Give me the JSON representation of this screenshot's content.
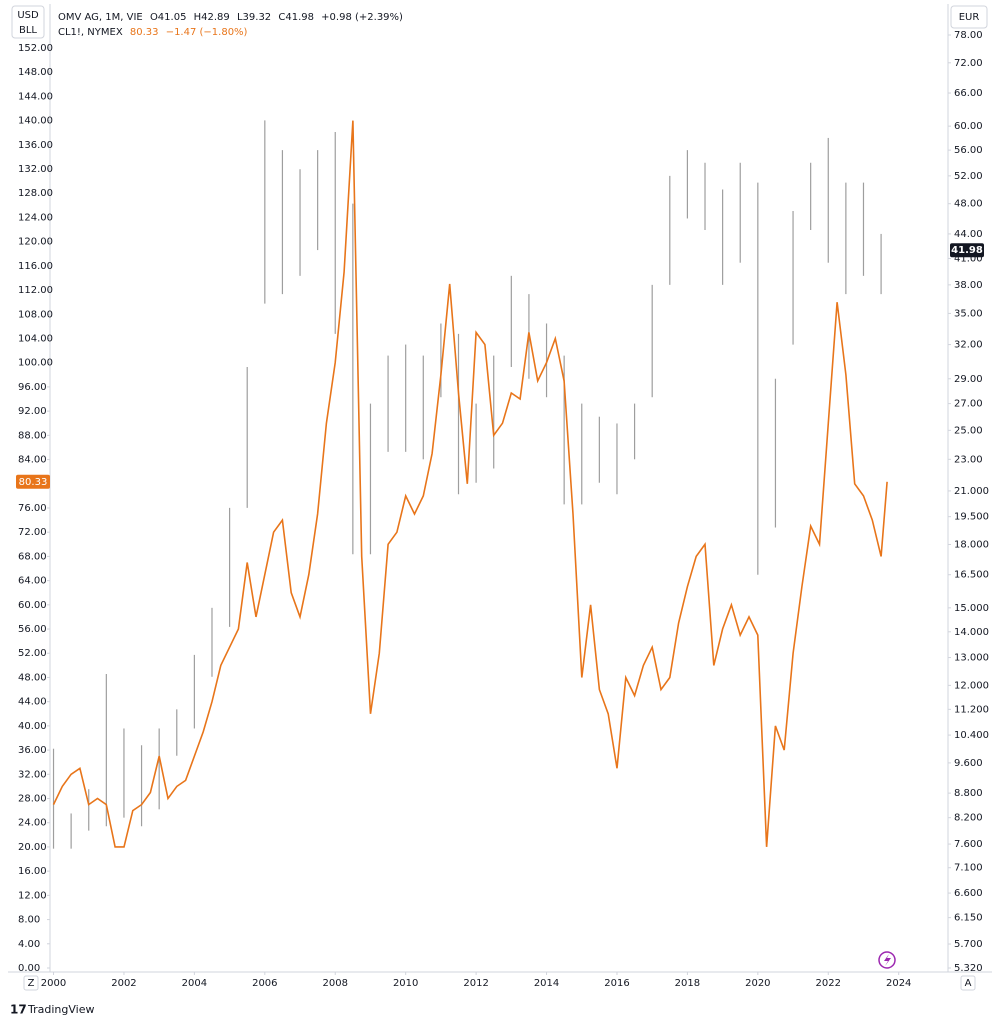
{
  "header": {
    "left_unit_top": "USD",
    "left_unit_bottom": "BLL",
    "right_unit": "EUR",
    "open": "O41.05",
    "high": "H42.89",
    "low": "L39.32",
    "close": "C41.98",
    "change": "+0.98 (+2.39%)",
    "oil_price": "80.33",
    "oil_change": "−1.47 (−1.80%)",
    "scale_left": "Z",
    "scale_right": "A",
    "brand": "TradingView"
  },
  "chart_data": {
    "type": "combo",
    "xlim": [
      1999.9,
      2025.4
    ],
    "xticks": [
      2000,
      2002,
      2004,
      2006,
      2008,
      2010,
      2012,
      2014,
      2016,
      2018,
      2020,
      2022,
      2024
    ],
    "ylim": [
      0,
      158.6
    ],
    "yticks": [
      {
        "value": 0,
        "label": "0.00"
      },
      {
        "value": 4,
        "label": "4.00"
      },
      {
        "value": 8,
        "label": "8.00"
      },
      {
        "value": 12,
        "label": "12.00"
      },
      {
        "value": 16,
        "label": "16.00"
      },
      {
        "value": 20,
        "label": "20.00"
      },
      {
        "value": 24,
        "label": "24.00"
      },
      {
        "value": 28,
        "label": "28.00"
      },
      {
        "value": 32,
        "label": "32.00"
      },
      {
        "value": 36,
        "label": "36.00"
      },
      {
        "value": 40,
        "label": "40.00"
      },
      {
        "value": 44,
        "label": "44.00"
      },
      {
        "value": 48,
        "label": "48.00"
      },
      {
        "value": 52,
        "label": "52.00"
      },
      {
        "value": 56,
        "label": "56.00"
      },
      {
        "value": 60,
        "label": "60.00"
      },
      {
        "value": 64,
        "label": "64.00"
      },
      {
        "value": 68,
        "label": "68.00"
      },
      {
        "value": 72,
        "label": "72.00"
      },
      {
        "value": 76,
        "label": "76.00"
      },
      {
        "value": 80,
        "label": "80.00"
      },
      {
        "value": 84,
        "label": "84.00"
      },
      {
        "value": 88,
        "label": "88.00"
      },
      {
        "value": 92,
        "label": "92.00"
      },
      {
        "value": 96,
        "label": "96.00"
      },
      {
        "value": 100,
        "label": "100.00"
      },
      {
        "value": 104,
        "label": "104.00"
      },
      {
        "value": 108,
        "label": "108.00"
      },
      {
        "value": 112,
        "label": "112.00"
      },
      {
        "value": 116,
        "label": "116.00"
      },
      {
        "value": 120,
        "label": "120.00"
      },
      {
        "value": 124,
        "label": "124.00"
      },
      {
        "value": 128,
        "label": "128.00"
      },
      {
        "value": 132,
        "label": "132.00"
      },
      {
        "value": 136,
        "label": "136.00"
      },
      {
        "value": 140,
        "label": "140.00"
      },
      {
        "value": 144,
        "label": "144.00"
      },
      {
        "value": 148,
        "label": "148.00"
      },
      {
        "value": 152,
        "label": "152.00"
      }
    ],
    "y2lim": [
      5.32,
      84.3
    ],
    "y2_log": true,
    "y2ticks": [
      {
        "value": 5.32,
        "label": "5.320"
      },
      {
        "value": 5.7,
        "label": "5.700"
      },
      {
        "value": 6.15,
        "label": "6.150"
      },
      {
        "value": 6.6,
        "label": "6.600"
      },
      {
        "value": 7.1,
        "label": "7.100"
      },
      {
        "value": 7.6,
        "label": "7.600"
      },
      {
        "value": 8.2,
        "label": "8.200"
      },
      {
        "value": 8.8,
        "label": "8.800"
      },
      {
        "value": 9.6,
        "label": "9.600"
      },
      {
        "value": 10.4,
        "label": "10.400"
      },
      {
        "value": 11.2,
        "label": "11.200"
      },
      {
        "value": 12,
        "label": "12.000"
      },
      {
        "value": 13,
        "label": "13.000"
      },
      {
        "value": 14,
        "label": "14.000"
      },
      {
        "value": 15,
        "label": "15.000"
      },
      {
        "value": 16.5,
        "label": "16.500"
      },
      {
        "value": 18,
        "label": "18.000"
      },
      {
        "value": 19.5,
        "label": "19.500"
      },
      {
        "value": 21,
        "label": "21.000"
      },
      {
        "value": 23,
        "label": "23.00"
      },
      {
        "value": 25,
        "label": "25.00"
      },
      {
        "value": 27,
        "label": "27.00"
      },
      {
        "value": 29,
        "label": "29.00"
      },
      {
        "value": 32,
        "label": "32.00"
      },
      {
        "value": 35,
        "label": "35.00"
      },
      {
        "value": 38,
        "label": "38.00"
      },
      {
        "value": 41,
        "label": "41.00"
      },
      {
        "value": 44,
        "label": "44.00"
      },
      {
        "value": 48,
        "label": "48.00"
      },
      {
        "value": 52,
        "label": "52.00"
      },
      {
        "value": 56,
        "label": "56.00"
      },
      {
        "value": 60,
        "label": "60.00"
      },
      {
        "value": 66,
        "label": "66.00"
      },
      {
        "value": 72,
        "label": "72.00"
      },
      {
        "value": 78,
        "label": "78.00"
      }
    ],
    "series": [
      {
        "name": "OMV AG, 1M, VIE",
        "type": "range-bar",
        "axis": "y2",
        "color": "#9e9e9e",
        "last_value": 41.98,
        "last_label": "41.98",
        "x": [
          2000,
          2000.5,
          2001,
          2001.5,
          2002,
          2002.5,
          2003,
          2003.5,
          2004,
          2004.5,
          2005,
          2005.5,
          2006,
          2006.5,
          2007,
          2007.5,
          2008,
          2008.5,
          2009,
          2009.5,
          2010,
          2010.5,
          2011,
          2011.5,
          2012,
          2012.5,
          2013,
          2013.5,
          2014,
          2014.5,
          2015,
          2015.5,
          2016,
          2016.5,
          2017,
          2017.5,
          2018,
          2018.5,
          2019,
          2019.5,
          2020,
          2020.5,
          2021,
          2021.5,
          2022,
          2022.5,
          2023,
          2023.5
        ],
        "high": [
          10,
          8.3,
          8.9,
          12.4,
          10.6,
          10.1,
          10.6,
          11.2,
          13.1,
          15,
          20,
          30,
          61,
          56,
          53,
          56,
          59,
          48,
          27,
          31,
          32,
          31,
          34,
          33,
          27,
          31,
          39,
          37,
          34,
          31,
          27,
          26,
          25.5,
          27,
          38,
          52,
          56,
          54,
          50,
          54,
          51,
          29,
          47,
          54,
          58,
          51,
          51,
          44
        ],
        "low": [
          7.5,
          7.5,
          7.9,
          8,
          8.2,
          8,
          8.4,
          9.8,
          10.6,
          12.3,
          14.2,
          20,
          36,
          37,
          39,
          42,
          33,
          17.5,
          17.5,
          23.5,
          23.5,
          23,
          27.5,
          20.8,
          21.5,
          22.4,
          30,
          29,
          27.5,
          20.2,
          20.2,
          21.5,
          20.8,
          23,
          27.5,
          38,
          46,
          44.5,
          38,
          40.5,
          16.5,
          18.9,
          32,
          44.5,
          40.5,
          37,
          39,
          37
        ]
      },
      {
        "name": "CL1!, NYMEX",
        "type": "line",
        "axis": "y",
        "color": "#e8751a",
        "last_value": 80.33,
        "last_label": "80.33",
        "x": [
          2000,
          2000.25,
          2000.5,
          2000.75,
          2001,
          2001.25,
          2001.5,
          2001.75,
          2002,
          2002.25,
          2002.5,
          2002.75,
          2003,
          2003.25,
          2003.5,
          2003.75,
          2004,
          2004.25,
          2004.5,
          2004.75,
          2005,
          2005.25,
          2005.5,
          2005.75,
          2006,
          2006.25,
          2006.5,
          2006.75,
          2007,
          2007.25,
          2007.5,
          2007.75,
          2008,
          2008.25,
          2008.5,
          2008.75,
          2009,
          2009.25,
          2009.5,
          2009.75,
          2010,
          2010.25,
          2010.5,
          2010.75,
          2011,
          2011.25,
          2011.5,
          2011.75,
          2012,
          2012.25,
          2012.5,
          2012.75,
          2013,
          2013.25,
          2013.5,
          2013.75,
          2014,
          2014.25,
          2014.5,
          2014.75,
          2015,
          2015.25,
          2015.5,
          2015.75,
          2016,
          2016.25,
          2016.5,
          2016.75,
          2017,
          2017.25,
          2017.5,
          2017.75,
          2018,
          2018.25,
          2018.5,
          2018.75,
          2019,
          2019.25,
          2019.5,
          2019.75,
          2020,
          2020.25,
          2020.5,
          2020.75,
          2021,
          2021.25,
          2021.5,
          2021.75,
          2022,
          2022.25,
          2022.5,
          2022.75,
          2023,
          2023.25,
          2023.5,
          2023.67
        ],
        "values": [
          27,
          30,
          32,
          33,
          27,
          28,
          27,
          20,
          20,
          26,
          27,
          29,
          35,
          28,
          30,
          31,
          35,
          39,
          44,
          50,
          53,
          56,
          67,
          58,
          65,
          72,
          74,
          62,
          58,
          65,
          75,
          90,
          100,
          115,
          140,
          68,
          42,
          52,
          70,
          72,
          78,
          75,
          78,
          85,
          98,
          113,
          95,
          80,
          105,
          103,
          88,
          90,
          95,
          94,
          105,
          97,
          100,
          104,
          97,
          75,
          48,
          60,
          46,
          42,
          33,
          48,
          45,
          50,
          53,
          46,
          48,
          57,
          63,
          68,
          70,
          50,
          56,
          60,
          55,
          58,
          55,
          20,
          40,
          36,
          52,
          63,
          73,
          70,
          90,
          110,
          98,
          80,
          78,
          74,
          68,
          80.33
        ]
      }
    ]
  }
}
